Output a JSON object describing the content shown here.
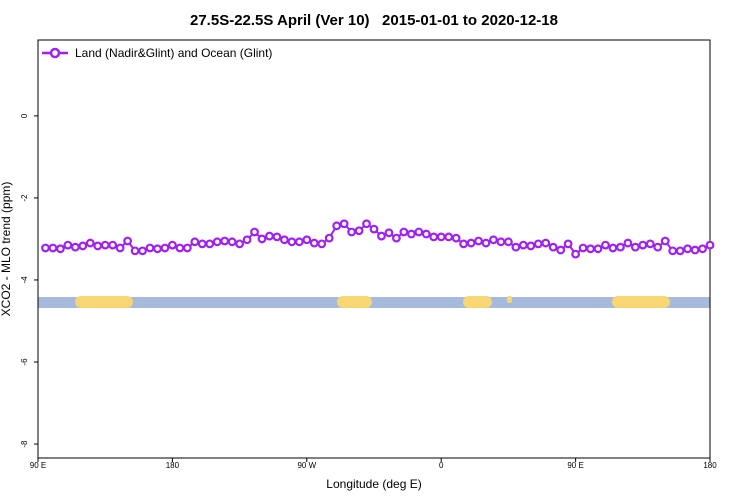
{
  "chart_data": {
    "type": "line",
    "title": "27.5S-22.5S April (Ver 10)   2015-01-01 to 2020-12-18",
    "x_label": "Longitude (deg E)",
    "y_label": "XCO2 - MLO trend (ppm)",
    "xlim": [
      90,
      540
    ],
    "ylim": [
      -8.34,
      1.85
    ],
    "xticks": [
      {
        "value": 90,
        "label": "90 E"
      },
      180,
      {
        "value": 270,
        "label": "90 W"
      },
      {
        "value": 360,
        "label": "0"
      },
      {
        "value": 450,
        "label": "90 E"
      },
      {
        "value": 540,
        "label": "180"
      }
    ],
    "yticks": [
      0,
      -2,
      -4,
      -6,
      -8
    ],
    "legend": "top-left",
    "x": [
      95,
      100,
      105,
      110,
      115,
      120,
      125,
      130,
      135,
      140,
      145,
      150,
      155,
      160,
      165,
      170,
      175,
      180,
      185,
      190,
      195,
      200,
      205,
      210,
      215,
      220,
      225,
      230,
      235,
      240,
      245,
      250,
      255,
      260,
      265,
      270,
      275,
      280,
      285,
      290,
      295,
      300,
      305,
      310,
      315,
      320,
      325,
      330,
      335,
      340,
      345,
      350,
      355,
      360,
      365,
      370,
      375,
      380,
      385,
      390,
      395,
      400,
      405,
      410,
      415,
      420,
      425,
      430,
      435,
      440,
      445,
      450,
      455,
      460,
      465,
      470,
      475,
      480,
      485,
      490,
      495,
      500,
      505,
      510,
      515,
      520,
      525,
      530,
      535,
      540
    ],
    "series": [
      {
        "name": "Land (Nadir&Glint) and Ocean (Glint)",
        "color": "#a020f0",
        "values": [
          -3.22,
          -3.22,
          -3.24,
          -3.15,
          -3.2,
          -3.17,
          -3.1,
          -3.17,
          -3.15,
          -3.15,
          -3.22,
          -3.05,
          -3.29,
          -3.29,
          -3.22,
          -3.24,
          -3.22,
          -3.15,
          -3.22,
          -3.22,
          -3.07,
          -3.12,
          -3.12,
          -3.07,
          -3.05,
          -3.07,
          -3.12,
          -3.02,
          -2.83,
          -3.0,
          -2.93,
          -2.95,
          -3.02,
          -3.07,
          -3.07,
          -3.02,
          -3.1,
          -3.12,
          -2.98,
          -2.68,
          -2.63,
          -2.83,
          -2.8,
          -2.63,
          -2.76,
          -2.93,
          -2.85,
          -2.98,
          -2.83,
          -2.88,
          -2.83,
          -2.88,
          -2.95,
          -2.95,
          -2.95,
          -2.98,
          -3.12,
          -3.1,
          -3.05,
          -3.1,
          -3.02,
          -3.07,
          -3.07,
          -3.2,
          -3.15,
          -3.17,
          -3.12,
          -3.1,
          -3.2,
          -3.27,
          -3.12,
          -3.37,
          -3.22,
          -3.24,
          -3.24,
          -3.15,
          -3.22,
          -3.2,
          -3.1,
          -3.2,
          -3.15,
          -3.12,
          -3.2,
          -3.05,
          -3.29,
          -3.29,
          -3.24,
          -3.27,
          -3.24,
          -3.15
        ]
      }
    ]
  }
}
